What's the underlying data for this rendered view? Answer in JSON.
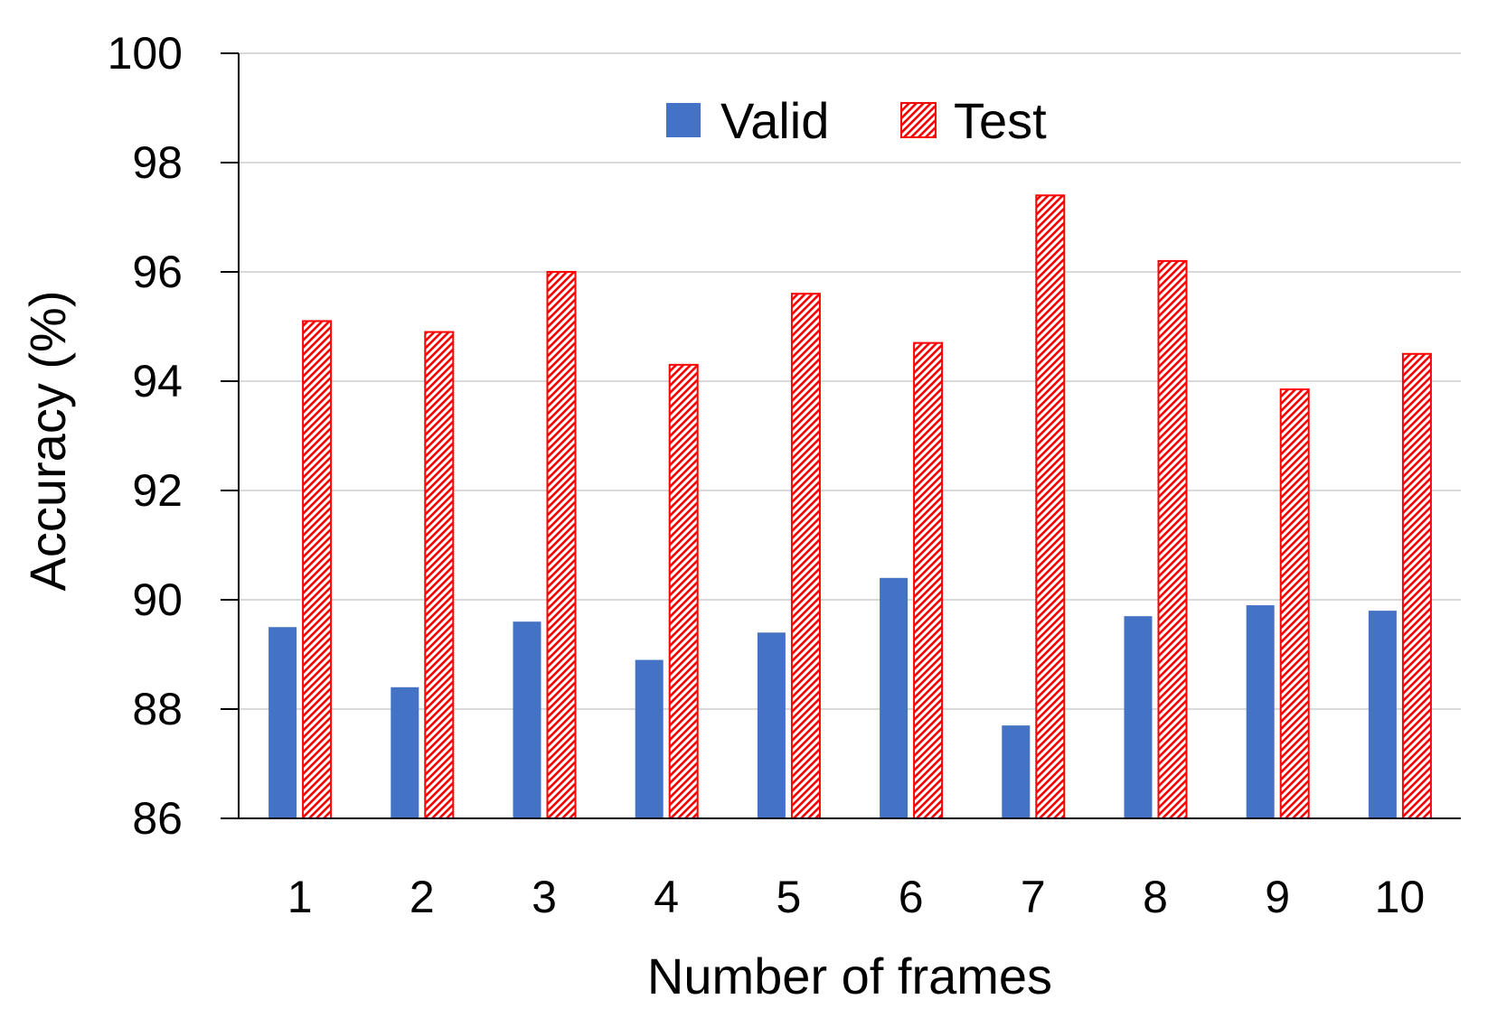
{
  "chart_data": {
    "type": "bar",
    "title": "",
    "xlabel": "Number of frames",
    "ylabel": "Accuracy (%)",
    "categories": [
      "1",
      "2",
      "3",
      "4",
      "5",
      "6",
      "7",
      "8",
      "9",
      "10"
    ],
    "series": [
      {
        "name": "Valid",
        "color": "#4472C4",
        "fill_style": "solid",
        "values": [
          89.5,
          88.4,
          89.6,
          88.9,
          89.4,
          90.4,
          87.7,
          89.7,
          89.9,
          89.8
        ]
      },
      {
        "name": "Test",
        "color": "#FF0000",
        "fill_style": "diagonal-hatch",
        "values": [
          95.1,
          94.9,
          96.0,
          94.3,
          95.6,
          94.7,
          97.4,
          96.2,
          93.85,
          94.5
        ]
      }
    ],
    "ylim": [
      86,
      100
    ],
    "yticks": [
      "86",
      "88",
      "90",
      "92",
      "94",
      "96",
      "98",
      "100"
    ],
    "grid": true,
    "legend": "top-center"
  }
}
